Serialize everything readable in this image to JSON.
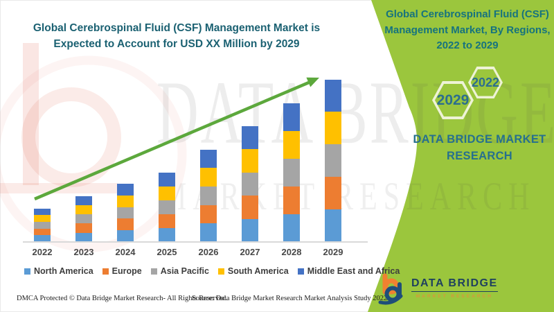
{
  "header": {
    "main_title_line1": "Global Cerebrospinal Fluid (CSF) Management Market is",
    "main_title_line2": "Expected to Account for USD XX Million by 2029"
  },
  "side_panel": {
    "title_line1": "Global Cerebrospinal Fluid (CSF)",
    "title_line2": "Management Market, By Regions,",
    "title_line3": "2022 to 2029",
    "hexagons": [
      {
        "label": "2029"
      },
      {
        "label": "2022"
      }
    ],
    "brand_line1": "DATA BRIDGE MARKET",
    "brand_line2": "RESEARCH",
    "panel_green": "#9BC63D",
    "hex_border_color": "#EEF3D6",
    "hex_text_color": "#2C6E8E",
    "title_color": "#16737E"
  },
  "chart_data": {
    "type": "bar",
    "stacked": true,
    "title": "Global Cerebrospinal Fluid (CSF) Management Market is Expected to Account for USD XX Million by 2029",
    "xlabel": "",
    "ylabel": "",
    "values_note": "Y-axis values are not labeled in the image (placeholder 'USD XX Million'); series values are estimated relative segment heights in pixels, each bar split into five roughly equal regional segments.",
    "categories": [
      "2022",
      "2023",
      "2024",
      "2025",
      "2026",
      "2027",
      "2028",
      "2029"
    ],
    "bar_totals": [
      48.5,
      66.5,
      84,
      100.5,
      133.5,
      167,
      200.5,
      234.5
    ],
    "series": [
      {
        "name": "North America",
        "color": "#5B9BD5",
        "values": [
          9.7,
          13.3,
          16.8,
          20.1,
          26.7,
          33.4,
          40.1,
          46.9
        ]
      },
      {
        "name": "Europe",
        "color": "#ED7D31",
        "values": [
          9.7,
          13.3,
          16.8,
          20.1,
          26.7,
          33.4,
          40.1,
          46.9
        ]
      },
      {
        "name": "Asia Pacific",
        "color": "#A5A5A5",
        "values": [
          9.7,
          13.3,
          16.8,
          20.1,
          26.7,
          33.4,
          40.1,
          46.9
        ]
      },
      {
        "name": "South America",
        "color": "#FFC000",
        "values": [
          9.7,
          13.3,
          16.8,
          20.1,
          26.7,
          33.4,
          40.1,
          46.9
        ]
      },
      {
        "name": "Middle East and Africa",
        "color": "#4472C4",
        "values": [
          9.7,
          13.3,
          16.8,
          20.1,
          26.7,
          33.4,
          40.1,
          46.9
        ]
      }
    ],
    "legend_position": "bottom",
    "grid": false,
    "trend_arrow": {
      "present": true,
      "color": "#5CA83C",
      "direction": "up-right"
    }
  },
  "footer": {
    "dmca_text": "DMCA Protected © Data Bridge Market Research- All Rights Reserved.",
    "source_text": "Source: Data Bridge Market Research Market Analysis Study 2022"
  },
  "logo": {
    "name": "DATA BRIDGE",
    "subtitle": "MARKET RESEARCH",
    "orange": "#F08130",
    "navy": "#1F4E79"
  },
  "watermark": {
    "line1": "DATA BRIDGE",
    "line2": "MARKET RESEARCH"
  }
}
